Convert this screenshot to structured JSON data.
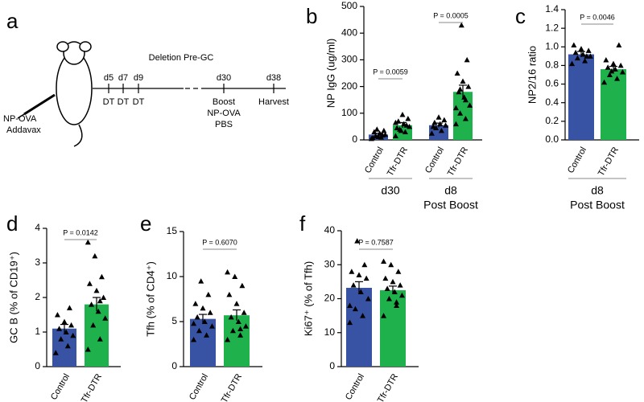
{
  "timeline": {
    "label": "a",
    "injection": [
      "NP-OVA",
      "Addavax"
    ],
    "phase": "Deletion Pre-GC",
    "events": [
      {
        "day": "d5",
        "lines": [
          "DT"
        ]
      },
      {
        "day": "d7",
        "lines": [
          "DT"
        ]
      },
      {
        "day": "d9",
        "lines": [
          "DT"
        ]
      },
      {
        "day": "d30",
        "lines": [
          "Boost",
          "NP-OVA",
          "PBS"
        ]
      },
      {
        "day": "d38",
        "lines": [
          "Harvest"
        ]
      }
    ]
  },
  "chart_data": [
    {
      "type": "bar",
      "label": "b",
      "ylabel": "NP IgG (ug/ml)",
      "categories": [
        "Control",
        "Tfr-DTR",
        "Control",
        "Tfr-DTR"
      ],
      "colors": [
        "#3953a4",
        "#1fb14b",
        "#3953a4",
        "#1fb14b"
      ],
      "values": [
        20,
        55,
        55,
        180
      ],
      "errors": [
        5,
        10,
        8,
        25
      ],
      "points": [
        [
          5,
          10,
          15,
          20,
          25,
          30,
          35,
          12,
          8,
          18,
          40
        ],
        [
          15,
          30,
          40,
          50,
          60,
          70,
          80,
          95,
          45,
          55,
          35,
          65
        ],
        [
          25,
          35,
          45,
          55,
          60,
          65,
          75,
          85,
          50
        ],
        [
          60,
          80,
          100,
          130,
          160,
          180,
          200,
          220,
          250,
          300,
          430,
          120,
          150,
          190
        ]
      ],
      "ylim": [
        0,
        500
      ],
      "yticks": [
        0,
        100,
        200,
        300,
        400,
        500
      ],
      "pvalues": [
        "P = 0.0059",
        "P = 0.0005"
      ],
      "groups": [
        {
          "lines": [
            "d30"
          ]
        },
        {
          "lines": [
            "d8",
            "Post Boost"
          ]
        }
      ]
    },
    {
      "type": "bar",
      "label": "c",
      "ylabel": "NP2/16 ratio",
      "categories": [
        "Control",
        "Tfr-DTR"
      ],
      "colors": [
        "#3953a4",
        "#1fb14b"
      ],
      "values": [
        0.92,
        0.76
      ],
      "errors": [
        0.03,
        0.03
      ],
      "points": [
        [
          0.82,
          0.85,
          0.88,
          0.9,
          0.92,
          0.94,
          0.96,
          0.98,
          1.02,
          0.9
        ],
        [
          0.62,
          0.66,
          0.7,
          0.73,
          0.76,
          0.78,
          0.8,
          0.82,
          0.86,
          1.02,
          0.74
        ]
      ],
      "ylim": [
        0,
        1.4
      ],
      "yticks": [
        {
          "value": 0,
          "label": "0.0"
        },
        0.2,
        0.4,
        0.6,
        0.8,
        {
          "value": 1,
          "label": "1.0"
        },
        1.2,
        1.4
      ],
      "pvalues": [
        "P = 0.0046"
      ],
      "groups": [
        {
          "lines": [
            "d8",
            "Post Boost"
          ]
        }
      ]
    },
    {
      "type": "bar",
      "label": "d",
      "ylabel": "GC B (% of CD19⁺)",
      "categories": [
        "Control",
        "Tfr-DTR"
      ],
      "colors": [
        "#3953a4",
        "#1fb14b"
      ],
      "values": [
        1.1,
        1.8
      ],
      "errors": [
        0.12,
        0.2
      ],
      "points": [
        [
          0.4,
          0.6,
          0.8,
          0.9,
          1.0,
          1.1,
          1.2,
          1.3,
          1.5,
          1.7
        ],
        [
          0.5,
          0.8,
          1.2,
          1.4,
          1.6,
          1.8,
          2.0,
          2.2,
          2.4,
          2.6,
          3.2,
          3.6,
          1.9
        ]
      ],
      "ylim": [
        0,
        4
      ],
      "yticks": [
        0,
        1,
        2,
        3,
        4
      ],
      "pvalues": [
        "P = 0.0142"
      ],
      "groups": []
    },
    {
      "type": "bar",
      "label": "e",
      "ylabel": "Tfh (% of CD4⁺)",
      "categories": [
        "Control",
        "Tfr-DTR"
      ],
      "colors": [
        "#3953a4",
        "#1fb14b"
      ],
      "values": [
        5.3,
        5.7
      ],
      "errors": [
        0.5,
        0.6
      ],
      "points": [
        [
          3,
          3.5,
          4,
          4.5,
          5,
          5.5,
          6,
          6.5,
          7,
          8,
          9.5,
          4.8
        ],
        [
          3,
          3.5,
          4,
          4.5,
          5,
          5.5,
          6,
          7,
          8,
          9,
          10,
          10.5,
          4.2
        ]
      ],
      "ylim": [
        0,
        15
      ],
      "yticks": [
        0,
        5,
        10,
        15
      ],
      "pvalues": [
        "P = 0.6070"
      ],
      "groups": []
    },
    {
      "type": "bar",
      "label": "f",
      "ylabel": "Ki67⁺ (% of Tfh)",
      "categories": [
        "Control",
        "Tfr-DTR"
      ],
      "colors": [
        "#3953a4",
        "#1fb14b"
      ],
      "values": [
        23.2,
        22.5
      ],
      "errors": [
        1.8,
        1.2
      ],
      "points": [
        [
          13,
          15,
          17,
          20,
          22,
          24,
          26,
          27,
          28,
          30,
          37,
          18
        ],
        [
          15,
          18,
          20,
          21,
          22,
          23,
          24,
          25,
          26,
          28,
          30,
          31,
          19
        ]
      ],
      "ylim": [
        0,
        40
      ],
      "yticks": [
        0,
        10,
        20,
        30,
        40
      ],
      "pvalues": [
        "P = 0.7587"
      ],
      "groups": []
    }
  ]
}
